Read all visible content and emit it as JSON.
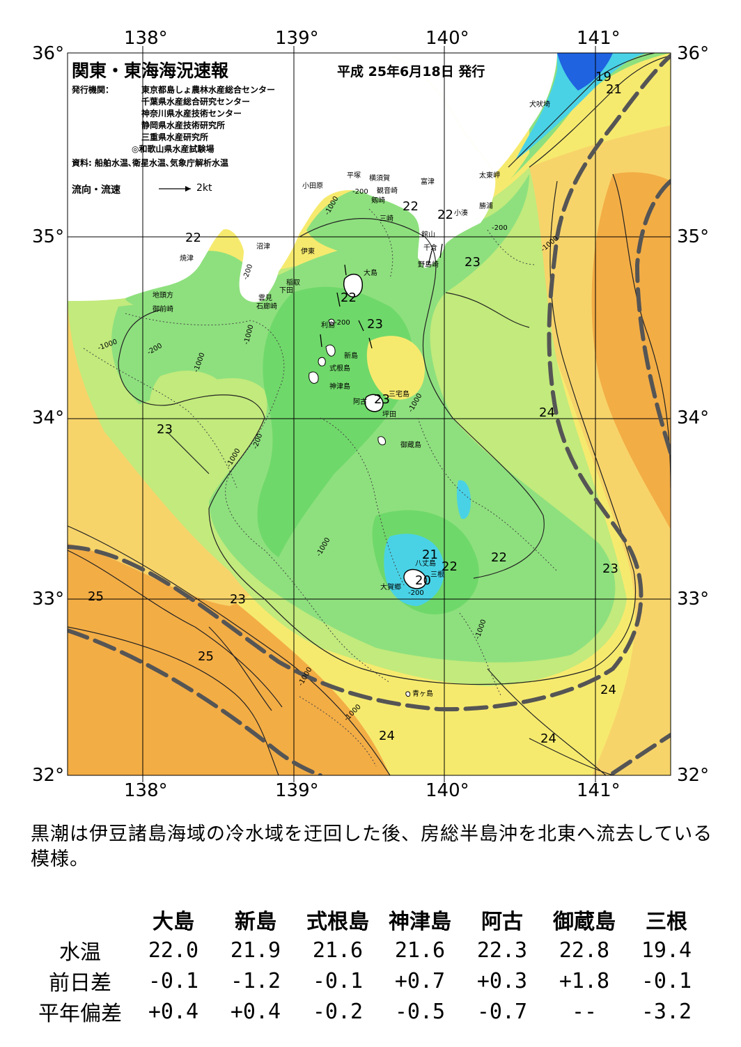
{
  "header": {
    "title": "関東・東海海況速報",
    "issue_date": "平成 25年6月18日 発行",
    "issuer_label": "発行機関：",
    "issuers": [
      "東京都島しょ農林水産総合センター",
      "千葉県水産総合研究センター",
      "神奈川県水産技術センター",
      "静岡県水産技術研究所",
      "三重県水産研究所",
      "◎和歌山県水産試験場"
    ],
    "source": "資料: 船舶水温､衛星水温､気象庁解析水温",
    "current_legend": "流向・流速",
    "current_unit": "2kt"
  },
  "axes": {
    "lon_top": [
      "138°",
      "139°",
      "140°",
      "141°"
    ],
    "lon_bottom": [
      "138°",
      "139°",
      "140°",
      "141°"
    ],
    "lat_left": [
      "36°",
      "35°",
      "34°",
      "33°",
      "32°"
    ],
    "lat_right": [
      "36°",
      "35°",
      "34°",
      "33°",
      "32°"
    ]
  },
  "places": [
    "犬吠埼",
    "太東岬",
    "勝浦",
    "小湊",
    "富津",
    "館山",
    "千倉",
    "野島崎",
    "横須賀",
    "観音崎",
    "平塚",
    "小田原",
    "剱崎",
    "三崎",
    "沼津",
    "焼津",
    "伊東",
    "稲取",
    "下田",
    "雲見",
    "石廊崎",
    "地頭方",
    "御前崎",
    "大島",
    "利島",
    "新島",
    "式根島",
    "神津島",
    "三宅島",
    "阿古",
    "坪田",
    "御蔵島",
    "八丈島",
    "三根",
    "大賀郷",
    "青ヶ島"
  ],
  "isotherm_labels": [
    "19",
    "21",
    "22",
    "22",
    "22",
    "22",
    "22",
    "23",
    "23",
    "23",
    "23",
    "23",
    "24",
    "24",
    "24",
    "24",
    "25",
    "25",
    "21",
    "22",
    "20",
    "23"
  ],
  "depth_labels": [
    "-200",
    "-1000",
    "-200",
    "-1000",
    "-200",
    "-1000",
    "-1000",
    "-200",
    "-1000",
    "-200",
    "-1000",
    "-1000",
    "-1000",
    "-1000",
    "-200",
    "-1000",
    "-200",
    "-1000"
  ],
  "colors": {
    "cold_blue": "#1f63e0",
    "cyan": "#49d2e6",
    "green_light": "#8ee07e",
    "green": "#6fd86a",
    "yellow_green": "#c2ea7c",
    "yellow": "#f6ea6e",
    "light_orange": "#f7d46a",
    "orange": "#f3ad45",
    "kuroshio_line": "#555555"
  },
  "description": "黒潮は伊豆諸島海域の冷水域を迂回した後、房総半島沖を北東へ流去している模様。",
  "table": {
    "columns": [
      "大島",
      "新島",
      "式根島",
      "神津島",
      "阿古",
      "御蔵島",
      "三根"
    ],
    "rows": [
      {
        "label": "水温",
        "values": [
          "22.0",
          "21.9",
          "21.6",
          "21.6",
          "22.3",
          "22.8",
          "19.4"
        ]
      },
      {
        "label": "前日差",
        "values": [
          "-0.1",
          "-1.2",
          "-0.1",
          "+0.7",
          "+0.3",
          "+1.8",
          "-0.1"
        ]
      },
      {
        "label": "平年偏差",
        "values": [
          "+0.4",
          "+0.4",
          "-0.2",
          "-0.5",
          "-0.7",
          "--",
          "-3.2"
        ]
      }
    ]
  }
}
